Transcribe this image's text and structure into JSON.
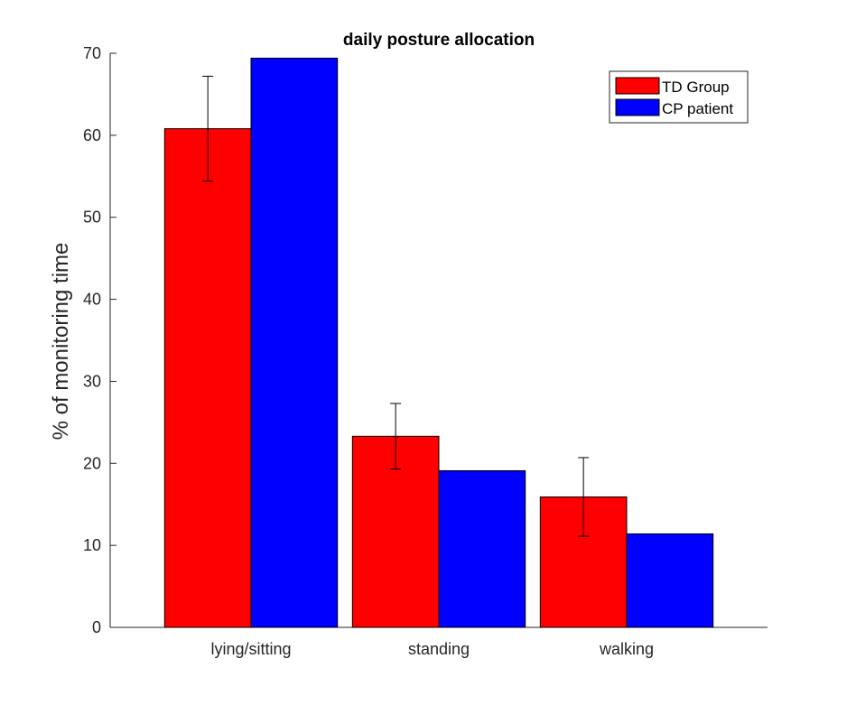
{
  "chart_data": {
    "type": "bar",
    "title": "daily posture allocation",
    "xlabel": "",
    "ylabel": "% of monitoring time",
    "categories": [
      "lying/sitting",
      "standing",
      "walking"
    ],
    "series": [
      {
        "name": "TD Group",
        "color": "#ff0000",
        "values": [
          60.8,
          23.3,
          15.9
        ],
        "error": [
          6.4,
          4.0,
          4.8
        ]
      },
      {
        "name": "CP patient",
        "color": "#0000ff",
        "values": [
          69.4,
          19.1,
          11.4
        ]
      }
    ],
    "ylim": [
      0,
      70
    ],
    "yticks": [
      0,
      10,
      20,
      30,
      40,
      50,
      60,
      70
    ],
    "grid": false,
    "legend_position": "top-right"
  }
}
